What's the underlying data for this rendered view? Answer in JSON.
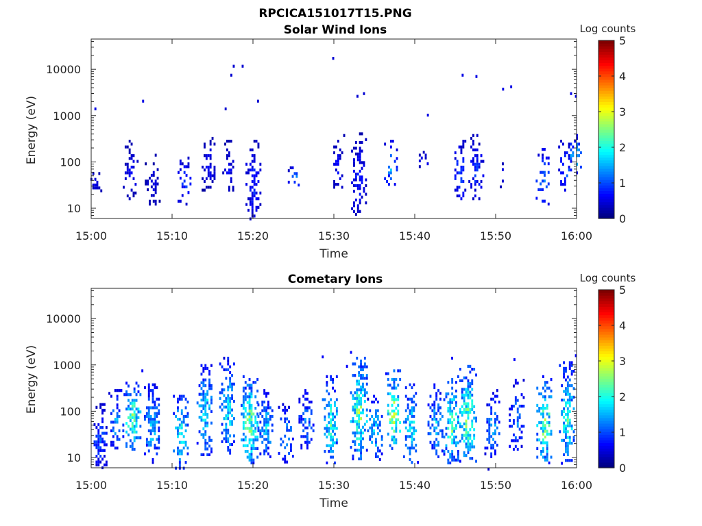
{
  "figure": {
    "title": "RPCICA151017T15.PNG"
  },
  "colormap_stops": [
    "#00007f",
    "#0000ff",
    "#007fff",
    "#00ffff",
    "#7fff7f",
    "#ffff00",
    "#ff7f00",
    "#ff0000",
    "#7f0000"
  ],
  "colors": {
    "axis": "#262626",
    "background": "#ffffff"
  },
  "chart_data": [
    {
      "type": "heatmap",
      "title": "Solar Wind Ions",
      "xlabel": "Time",
      "ylabel": "Energy (eV)",
      "yscale": "log",
      "x_range": [
        "15:00",
        "16:00"
      ],
      "ylim": [
        6,
        45000
      ],
      "x_ticks": [
        "15:00",
        "15:10",
        "15:20",
        "15:30",
        "15:40",
        "15:50",
        "16:00"
      ],
      "y_ticks": [
        {
          "value": 10,
          "label": "10"
        },
        {
          "value": 100,
          "label": "100"
        },
        {
          "value": 1000,
          "label": "1000"
        },
        {
          "value": 10000,
          "label": "10000"
        }
      ],
      "colorbar": {
        "label": "Log counts",
        "range": [
          0,
          5
        ],
        "ticks": [
          "0",
          "1",
          "2",
          "3",
          "4",
          "5"
        ]
      },
      "activity_bursts": [
        {
          "t_min": 0.5,
          "e_low": 20,
          "e_high": 80,
          "level": 0.5,
          "density": 0.5
        },
        {
          "t_min": 4.8,
          "e_low": 15,
          "e_high": 300,
          "level": 0.6,
          "density": 0.6
        },
        {
          "t_min": 7.5,
          "e_low": 12,
          "e_high": 150,
          "level": 0.5,
          "density": 0.55
        },
        {
          "t_min": 11.5,
          "e_low": 12,
          "e_high": 150,
          "level": 0.9,
          "density": 0.45
        },
        {
          "t_min": 14.5,
          "e_low": 25,
          "e_high": 400,
          "level": 0.6,
          "density": 0.5
        },
        {
          "t_min": 17.0,
          "e_low": 25,
          "e_high": 300,
          "level": 0.6,
          "density": 0.4
        },
        {
          "t_min": 20.0,
          "e_low": 6,
          "e_high": 300,
          "level": 0.8,
          "density": 0.65
        },
        {
          "t_min": 25.0,
          "e_low": 30,
          "e_high": 80,
          "level": 1.3,
          "density": 0.2
        },
        {
          "t_min": 30.5,
          "e_low": 20,
          "e_high": 400,
          "level": 0.6,
          "density": 0.45
        },
        {
          "t_min": 33.0,
          "e_low": 6,
          "e_high": 500,
          "level": 0.7,
          "density": 0.55
        },
        {
          "t_min": 37.0,
          "e_low": 30,
          "e_high": 300,
          "level": 1.4,
          "density": 0.4
        },
        {
          "t_min": 41.0,
          "e_low": 60,
          "e_high": 200,
          "level": 0.6,
          "density": 0.3
        },
        {
          "t_min": 45.5,
          "e_low": 15,
          "e_high": 300,
          "level": 1.0,
          "density": 0.5
        },
        {
          "t_min": 47.5,
          "e_low": 15,
          "e_high": 400,
          "level": 0.8,
          "density": 0.55
        },
        {
          "t_min": 50.5,
          "e_low": 30,
          "e_high": 150,
          "level": 0.5,
          "density": 0.25
        },
        {
          "t_min": 55.8,
          "e_low": 12,
          "e_high": 200,
          "level": 1.2,
          "density": 0.5
        },
        {
          "t_min": 58.6,
          "e_low": 25,
          "e_high": 300,
          "level": 1.0,
          "density": 0.55
        },
        {
          "t_min": 59.8,
          "e_low": 60,
          "e_high": 400,
          "level": 1.6,
          "density": 0.5
        }
      ],
      "isolated_points": [
        {
          "t_min": 0.4,
          "energy": 1500,
          "level": 0.5
        },
        {
          "t_min": 6.3,
          "energy": 2200,
          "level": 0.5
        },
        {
          "t_min": 17.2,
          "energy": 8000,
          "level": 0.4
        },
        {
          "t_min": 17.5,
          "energy": 12500,
          "level": 0.4
        },
        {
          "t_min": 18.6,
          "energy": 12500,
          "level": 0.4
        },
        {
          "t_min": 20.5,
          "energy": 2200,
          "level": 0.4
        },
        {
          "t_min": 29.8,
          "energy": 18500,
          "level": 0.4
        },
        {
          "t_min": 32.8,
          "energy": 2800,
          "level": 0.4
        },
        {
          "t_min": 33.6,
          "energy": 3200,
          "level": 0.4
        },
        {
          "t_min": 45.8,
          "energy": 8000,
          "level": 0.5
        },
        {
          "t_min": 47.5,
          "energy": 7500,
          "level": 0.5
        },
        {
          "t_min": 50.8,
          "energy": 4000,
          "level": 0.5
        },
        {
          "t_min": 51.8,
          "energy": 4500,
          "level": 0.5
        },
        {
          "t_min": 59.2,
          "energy": 3200,
          "level": 0.5
        },
        {
          "t_min": 59.8,
          "energy": 2800,
          "level": 0.5
        },
        {
          "t_min": 16.5,
          "energy": 1500,
          "level": 0.4
        },
        {
          "t_min": 41.5,
          "energy": 1100,
          "level": 0.5
        }
      ]
    },
    {
      "type": "heatmap",
      "title": "Cometary Ions",
      "xlabel": "Time",
      "ylabel": "Energy (eV)",
      "yscale": "log",
      "x_range": [
        "15:00",
        "16:00"
      ],
      "ylim": [
        6,
        45000
      ],
      "x_ticks": [
        "15:00",
        "15:10",
        "15:20",
        "15:30",
        "15:40",
        "15:50",
        "16:00"
      ],
      "y_ticks": [
        {
          "value": 10,
          "label": "10"
        },
        {
          "value": 100,
          "label": "100"
        },
        {
          "value": 1000,
          "label": "1000"
        },
        {
          "value": 10000,
          "label": "10000"
        }
      ],
      "colorbar": {
        "label": "Log counts",
        "range": [
          0,
          5
        ],
        "ticks": [
          "0",
          "1",
          "2",
          "3",
          "4",
          "5"
        ]
      },
      "activity_bursts": [
        {
          "t_min": 1.0,
          "e_low": 6,
          "e_high": 150,
          "level": 1.0,
          "density": 0.7
        },
        {
          "t_min": 3.0,
          "e_low": 15,
          "e_high": 300,
          "level": 1.4,
          "density": 0.55
        },
        {
          "t_min": 5.0,
          "e_low": 15,
          "e_high": 500,
          "level": 2.2,
          "density": 0.8
        },
        {
          "t_min": 7.5,
          "e_low": 8,
          "e_high": 400,
          "level": 1.6,
          "density": 0.75
        },
        {
          "t_min": 11.0,
          "e_low": 6,
          "e_high": 300,
          "level": 1.9,
          "density": 0.6
        },
        {
          "t_min": 14.0,
          "e_low": 12,
          "e_high": 1200,
          "level": 1.8,
          "density": 0.75
        },
        {
          "t_min": 16.8,
          "e_low": 12,
          "e_high": 1500,
          "level": 1.8,
          "density": 0.75
        },
        {
          "t_min": 19.5,
          "e_low": 8,
          "e_high": 600,
          "level": 2.4,
          "density": 0.85
        },
        {
          "t_min": 21.5,
          "e_low": 10,
          "e_high": 300,
          "level": 1.6,
          "density": 0.7
        },
        {
          "t_min": 24.0,
          "e_low": 8,
          "e_high": 150,
          "level": 1.4,
          "density": 0.6
        },
        {
          "t_min": 26.5,
          "e_low": 15,
          "e_high": 300,
          "level": 1.3,
          "density": 0.55
        },
        {
          "t_min": 29.5,
          "e_low": 8,
          "e_high": 600,
          "level": 2.0,
          "density": 0.75
        },
        {
          "t_min": 33.0,
          "e_low": 10,
          "e_high": 1500,
          "level": 2.4,
          "density": 0.8
        },
        {
          "t_min": 35.0,
          "e_low": 8,
          "e_high": 300,
          "level": 1.6,
          "density": 0.6
        },
        {
          "t_min": 37.3,
          "e_low": 12,
          "e_high": 800,
          "level": 2.6,
          "density": 0.7
        },
        {
          "t_min": 39.5,
          "e_low": 8,
          "e_high": 400,
          "level": 1.8,
          "density": 0.7
        },
        {
          "t_min": 42.5,
          "e_low": 10,
          "e_high": 400,
          "level": 1.6,
          "density": 0.65
        },
        {
          "t_min": 44.5,
          "e_low": 8,
          "e_high": 600,
          "level": 2.2,
          "density": 0.75
        },
        {
          "t_min": 46.5,
          "e_low": 8,
          "e_high": 1000,
          "level": 2.4,
          "density": 0.8
        },
        {
          "t_min": 49.5,
          "e_low": 10,
          "e_high": 300,
          "level": 1.4,
          "density": 0.6
        },
        {
          "t_min": 52.5,
          "e_low": 15,
          "e_high": 500,
          "level": 1.3,
          "density": 0.55
        },
        {
          "t_min": 56.0,
          "e_low": 8,
          "e_high": 600,
          "level": 2.4,
          "density": 0.75
        },
        {
          "t_min": 58.8,
          "e_low": 8,
          "e_high": 1200,
          "level": 2.0,
          "density": 0.75
        }
      ],
      "isolated_points": [
        {
          "t_min": 6.2,
          "energy": 800,
          "level": 0.6
        },
        {
          "t_min": 28.5,
          "energy": 1600,
          "level": 0.6
        },
        {
          "t_min": 32.0,
          "energy": 2000,
          "level": 0.6
        },
        {
          "t_min": 44.5,
          "energy": 1500,
          "level": 0.6
        },
        {
          "t_min": 52.2,
          "energy": 1400,
          "level": 0.6
        },
        {
          "t_min": 59.8,
          "energy": 1700,
          "level": 0.6
        },
        {
          "t_min": 49.0,
          "energy": 6,
          "level": 0.4
        },
        {
          "t_min": 31.5,
          "energy": 1000,
          "level": 0.6
        }
      ]
    }
  ]
}
